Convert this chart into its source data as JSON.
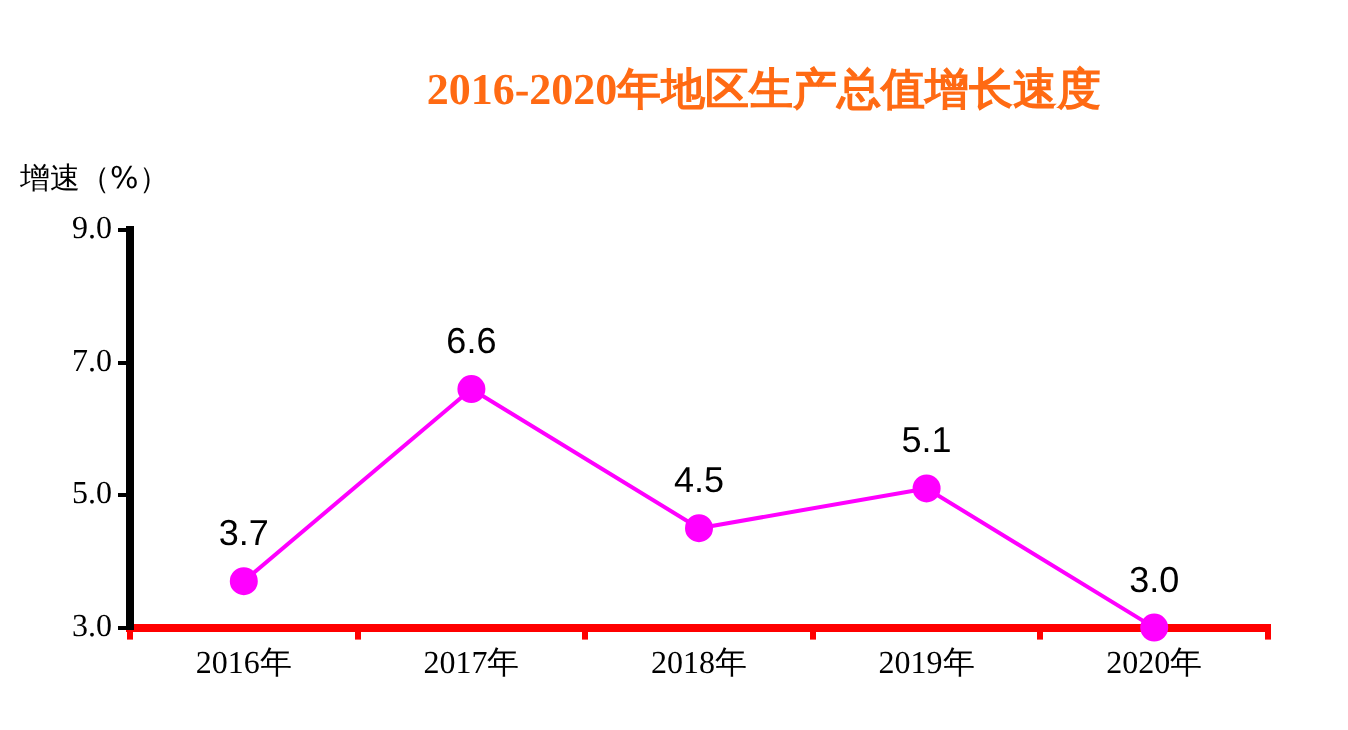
{
  "chart_data": {
    "type": "line",
    "title": "2016-2020年地区生产总值增长速度",
    "ylabel": "增速（%）",
    "categories": [
      "2016年",
      "2017年",
      "2018年",
      "2019年",
      "2020年"
    ],
    "series": [
      {
        "color": "#ff00ff",
        "values": [
          3.7,
          6.6,
          4.5,
          5.1,
          3.0
        ],
        "value_labels": [
          "3.7",
          "6.6",
          "4.5",
          "5.1",
          "3.0"
        ]
      }
    ],
    "ylim": [
      3,
      9
    ],
    "yticks": [
      {
        "value": 3,
        "label": "3.0"
      },
      {
        "value": 5,
        "label": "5.0"
      },
      {
        "value": 7,
        "label": "7.0"
      },
      {
        "value": 9,
        "label": "9.0"
      }
    ],
    "grid": false,
    "legend": false,
    "marker": "circle",
    "line_style": "solid"
  }
}
